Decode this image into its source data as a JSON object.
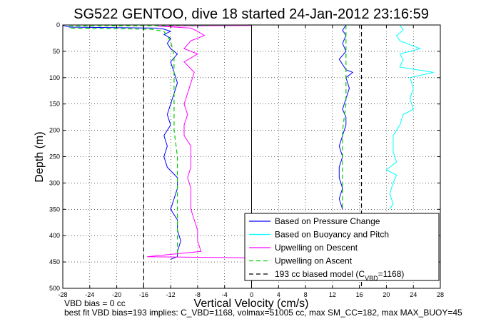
{
  "chart_data": {
    "type": "line",
    "title": "SG522 GENTOO, dive 18 started 24-Jan-2012 23:16:59",
    "xlabel": "Vertical Velocity (cm/s)",
    "ylabel": "Depth (m)",
    "xlim": [
      -28,
      28
    ],
    "ylim": [
      500,
      0
    ],
    "y_reversed": true,
    "grid": true,
    "legend_position": "bottom-right",
    "x_ticks": [
      "-28",
      "-24",
      "-20",
      "-16",
      "-12",
      "-8",
      "-4",
      "0",
      "4",
      "8",
      "12",
      "16",
      "20",
      "24",
      "28"
    ],
    "y_ticks": [
      "0",
      "50",
      "100",
      "150",
      "200",
      "250",
      "300",
      "350",
      "400",
      "450",
      "500"
    ],
    "reference_lines": {
      "model_descent_x": -16,
      "model_ascent_x": 16.3,
      "zero_x": 0
    },
    "series": [
      {
        "name": "Based on Pressure Change",
        "color": "#0000ff",
        "style": "solid",
        "points": [
          [
            -28,
            1
          ],
          [
            -27,
            4
          ],
          [
            -14,
            6
          ],
          [
            -13,
            8
          ],
          [
            -12,
            12
          ],
          [
            -13,
            18
          ],
          [
            -12,
            25
          ],
          [
            -12.5,
            35
          ],
          [
            -12,
            45
          ],
          [
            -11,
            55
          ],
          [
            -12,
            70
          ],
          [
            -11.5,
            90
          ],
          [
            -11,
            110
          ],
          [
            -11.5,
            130
          ],
          [
            -12,
            150
          ],
          [
            -12.5,
            170
          ],
          [
            -12,
            190
          ],
          [
            -13,
            210
          ],
          [
            -12.5,
            230
          ],
          [
            -13,
            250
          ],
          [
            -12.5,
            270
          ],
          [
            -11,
            290
          ],
          [
            -11,
            310
          ],
          [
            -11.5,
            330
          ],
          [
            -12,
            350
          ],
          [
            -11,
            370
          ],
          [
            -11,
            390
          ],
          [
            -10.5,
            410
          ],
          [
            -11,
            430
          ],
          [
            -11,
            440
          ],
          [
            -12,
            445
          ]
        ]
      },
      {
        "name": "Based on Pressure Change",
        "color": "#0000ff",
        "style": "solid",
        "points": [
          [
            14,
            0
          ],
          [
            13.5,
            10
          ],
          [
            14,
            20
          ],
          [
            13.5,
            35
          ],
          [
            14,
            50
          ],
          [
            13,
            65
          ],
          [
            14,
            85
          ],
          [
            15,
            90
          ],
          [
            14,
            100
          ],
          [
            14.5,
            120
          ],
          [
            14,
            140
          ],
          [
            13.5,
            160
          ],
          [
            14,
            175
          ],
          [
            14,
            190
          ],
          [
            13.5,
            210
          ],
          [
            13,
            230
          ],
          [
            13.5,
            250
          ],
          [
            13,
            270
          ],
          [
            13,
            290
          ],
          [
            13.5,
            310
          ],
          [
            13,
            330
          ],
          [
            13.5,
            350
          ]
        ]
      },
      {
        "name": "Based on Buoyancy and Pitch",
        "color": "#00ffff",
        "style": "solid",
        "points": [
          [
            22,
            0
          ],
          [
            22.5,
            10
          ],
          [
            21.5,
            20
          ],
          [
            22,
            30
          ],
          [
            25,
            45
          ],
          [
            22,
            55
          ],
          [
            22.5,
            65
          ],
          [
            22,
            80
          ],
          [
            27,
            90
          ],
          [
            23.5,
            100
          ],
          [
            24,
            120
          ],
          [
            23.5,
            140
          ],
          [
            24,
            160
          ],
          [
            22.5,
            170
          ],
          [
            22,
            190
          ],
          [
            21,
            210
          ],
          [
            21,
            240
          ],
          [
            21.5,
            260
          ],
          [
            20,
            275
          ],
          [
            21.5,
            285
          ],
          [
            21,
            300
          ],
          [
            20.5,
            320
          ],
          [
            21,
            340
          ],
          [
            20.5,
            350
          ]
        ]
      },
      {
        "name": "Upwelling on Descent",
        "color": "#ff00ff",
        "style": "solid",
        "points": [
          [
            0,
            1
          ],
          [
            -14,
            2
          ],
          [
            -9,
            6
          ],
          [
            -8,
            12
          ],
          [
            -7,
            20
          ],
          [
            -9,
            30
          ],
          [
            -10,
            45
          ],
          [
            -8,
            55
          ],
          [
            -10,
            70
          ],
          [
            -8.5,
            90
          ],
          [
            -9,
            110
          ],
          [
            -9.5,
            130
          ],
          [
            -10,
            150
          ],
          [
            -9.5,
            170
          ],
          [
            -10,
            190
          ],
          [
            -10,
            210
          ],
          [
            -9,
            230
          ],
          [
            -9,
            250
          ],
          [
            -9,
            270
          ],
          [
            -9.5,
            290
          ],
          [
            -9,
            310
          ],
          [
            -9,
            330
          ],
          [
            -9,
            350
          ],
          [
            -8.5,
            370
          ],
          [
            -8,
            390
          ],
          [
            -8,
            410
          ],
          [
            -7.5,
            430
          ],
          [
            -15.5,
            440
          ],
          [
            0,
            442
          ]
        ]
      },
      {
        "name": "Upwelling on Ascent",
        "color": "#00cc00",
        "style": "dashed",
        "points": [
          [
            0,
            0
          ],
          [
            -27,
            2
          ],
          [
            -27,
            6
          ],
          [
            -15,
            8
          ],
          [
            -13,
            12
          ],
          [
            -12,
            30
          ],
          [
            -11.5,
            60
          ],
          [
            -11.5,
            100
          ],
          [
            -11.5,
            150
          ],
          [
            -11.5,
            200
          ],
          [
            -11,
            250
          ],
          [
            -11,
            300
          ],
          [
            -11,
            350
          ],
          [
            -11,
            400
          ],
          [
            -11,
            440
          ]
        ]
      },
      {
        "name": "Upwelling on Ascent",
        "color": "#00cc00",
        "style": "dashed",
        "points": [
          [
            14,
            0
          ],
          [
            14,
            50
          ],
          [
            14,
            100
          ],
          [
            14,
            150
          ],
          [
            13.5,
            200
          ],
          [
            13.5,
            250
          ],
          [
            13.5,
            300
          ],
          [
            13.5,
            350
          ]
        ]
      },
      {
        "name": "193 cc biased model (C_VBD=1168)",
        "color": "#000000",
        "style": "dashed",
        "points": [
          [
            -16,
            2
          ],
          [
            -16,
            500
          ]
        ]
      },
      {
        "name": "193 cc biased model (C_VBD=1168)",
        "color": "#000000",
        "style": "dashed",
        "points": [
          [
            16.3,
            0
          ],
          [
            16.3,
            500
          ]
        ]
      }
    ],
    "legend": [
      {
        "label": "Based on Pressure Change",
        "color": "#0000ff",
        "style": "solid"
      },
      {
        "label": "Based on Buoyancy and Pitch",
        "color": "#00ffff",
        "style": "solid"
      },
      {
        "label": "Upwelling on Descent",
        "color": "#ff00ff",
        "style": "solid"
      },
      {
        "label": "Upwelling on Ascent",
        "color": "#00cc00",
        "style": "dashed"
      },
      {
        "label": "193 cc biased model (C",
        "sub": "VBD",
        "suffix": "=1168)",
        "color": "#000000",
        "style": "dashed"
      }
    ]
  },
  "footnotes": {
    "line1": "VBD bias = 0 cc",
    "line2": "best fit VBD bias=193 implies: C_VBD=1168, volmax=51005 cc, max SM_CC=182, max MAX_BUOY=45"
  }
}
